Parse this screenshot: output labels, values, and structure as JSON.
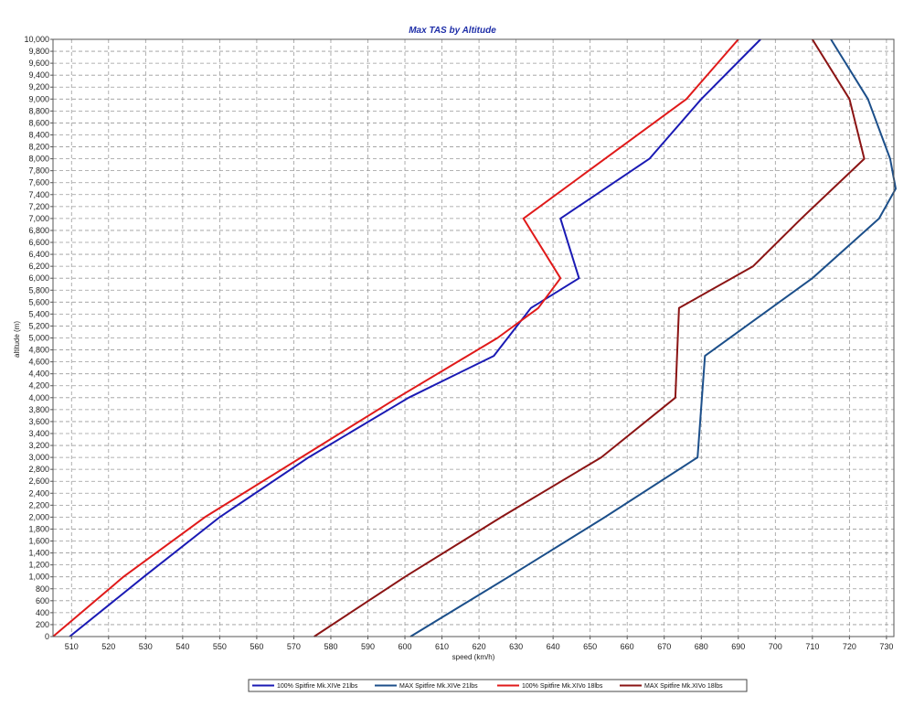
{
  "chart_data": {
    "type": "line",
    "title": "Max TAS by Altitude",
    "xlabel": "speed (km/h)",
    "ylabel": "altitude (m)",
    "xlim": [
      505,
      732
    ],
    "ylim": [
      0,
      10000
    ],
    "xticks": [
      510,
      520,
      530,
      540,
      550,
      560,
      570,
      580,
      590,
      600,
      610,
      620,
      630,
      640,
      650,
      660,
      670,
      680,
      690,
      700,
      710,
      720,
      730
    ],
    "xtick_labels": [
      "510",
      "520",
      "530",
      "540",
      "550",
      "560",
      "570",
      "580",
      "590",
      "600",
      "610",
      "620",
      "630",
      "640",
      "650",
      "660",
      "670",
      "680",
      "690",
      "700",
      "710",
      "720",
      "730"
    ],
    "yticks": [
      0,
      200,
      400,
      600,
      800,
      1000,
      1200,
      1400,
      1600,
      1800,
      2000,
      2200,
      2400,
      2600,
      2800,
      3000,
      3200,
      3400,
      3600,
      3800,
      4000,
      4200,
      4400,
      4600,
      4800,
      5000,
      5200,
      5400,
      5600,
      5800,
      6000,
      6200,
      6400,
      6600,
      6800,
      7000,
      7200,
      7400,
      7600,
      7800,
      8000,
      8200,
      8400,
      8600,
      8800,
      9000,
      9200,
      9400,
      9600,
      9800,
      10000
    ],
    "ytick_labels": [
      "0",
      "200",
      "400",
      "600",
      "800",
      "1,000",
      "1,200",
      "1,400",
      "1,600",
      "1,800",
      "2,000",
      "2,200",
      "2,400",
      "2,600",
      "2,800",
      "3,000",
      "3,200",
      "3,400",
      "3,600",
      "3,800",
      "4,000",
      "4,200",
      "4,400",
      "4,600",
      "4,800",
      "5,000",
      "5,200",
      "5,400",
      "5,600",
      "5,800",
      "6,000",
      "6,200",
      "6,400",
      "6,600",
      "6,800",
      "7,000",
      "7,200",
      "7,400",
      "7,600",
      "7,800",
      "8,000",
      "8,200",
      "8,400",
      "8,600",
      "8,800",
      "9,000",
      "9,200",
      "9,400",
      "9,600",
      "9,800",
      "10,000"
    ],
    "grid": true,
    "legend_position": "bottom",
    "series": [
      {
        "name": "100% Spitfire Mk.XIVe 21lbs",
        "color": "#1a1ab4",
        "points": [
          [
            509.5,
            0
          ],
          [
            529.5,
            1000
          ],
          [
            550,
            2000
          ],
          [
            574,
            3000
          ],
          [
            601,
            4000
          ],
          [
            624,
            4700
          ],
          [
            634,
            5500
          ],
          [
            647,
            6000
          ],
          [
            642,
            7000
          ],
          [
            666,
            8000
          ],
          [
            680,
            9000
          ],
          [
            696,
            10000
          ]
        ]
      },
      {
        "name": "MAX Spitfire Mk.XIVe 21lbs",
        "color": "#1c4f8a",
        "points": [
          [
            601.5,
            0
          ],
          [
            628,
            1000
          ],
          [
            654,
            2000
          ],
          [
            679,
            3000
          ],
          [
            681,
            4700
          ],
          [
            710,
            6000
          ],
          [
            728,
            7000
          ],
          [
            732.5,
            7500
          ],
          [
            731,
            8000
          ],
          [
            725,
            9000
          ],
          [
            715,
            10000
          ]
        ]
      },
      {
        "name": "100% Spitfire Mk.XIVo 18lbs",
        "color": "#e01a1a",
        "points": [
          [
            505,
            0
          ],
          [
            524,
            1000
          ],
          [
            546,
            2000
          ],
          [
            572,
            3000
          ],
          [
            598,
            4000
          ],
          [
            625,
            5000
          ],
          [
            636,
            5500
          ],
          [
            642,
            6000
          ],
          [
            632,
            7000
          ],
          [
            654,
            8000
          ],
          [
            676,
            9000
          ],
          [
            690,
            10000
          ]
        ]
      },
      {
        "name": "MAX Spitfire Mk.XIVo 18lbs",
        "color": "#8b1414",
        "points": [
          [
            575.5,
            0
          ],
          [
            600,
            1000
          ],
          [
            626,
            2000
          ],
          [
            653,
            3000
          ],
          [
            673,
            4000
          ],
          [
            674,
            5500
          ],
          [
            694,
            6200
          ],
          [
            707,
            7000
          ],
          [
            724,
            8000
          ],
          [
            720,
            9000
          ],
          [
            710,
            10000
          ]
        ]
      }
    ]
  }
}
